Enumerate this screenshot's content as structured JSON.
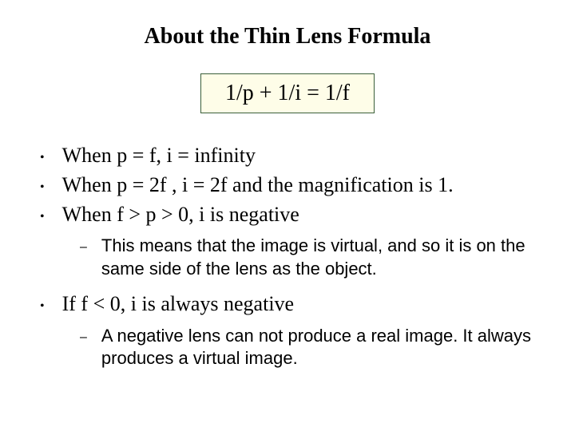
{
  "title": "About the Thin Lens Formula",
  "formula": "1/p + 1/i = 1/f",
  "bullets": [
    {
      "text": "When p = f, i = infinity",
      "subs": []
    },
    {
      "text": "When p = 2f ,  i = 2f and the magnification is 1.",
      "subs": []
    },
    {
      "text": "When f > p > 0, i is negative",
      "subs": [
        "This means that the image is virtual, and so it is on the same side of the lens as the object."
      ]
    },
    {
      "text": "If f < 0,  i is always negative",
      "subs": [
        "A negative lens can not produce a real image.  It always produces a virtual image."
      ]
    }
  ],
  "colors": {
    "background": "#ffffff",
    "text": "#000000",
    "formula_bg": "#fefde8",
    "formula_border": "#3a5f3a"
  }
}
